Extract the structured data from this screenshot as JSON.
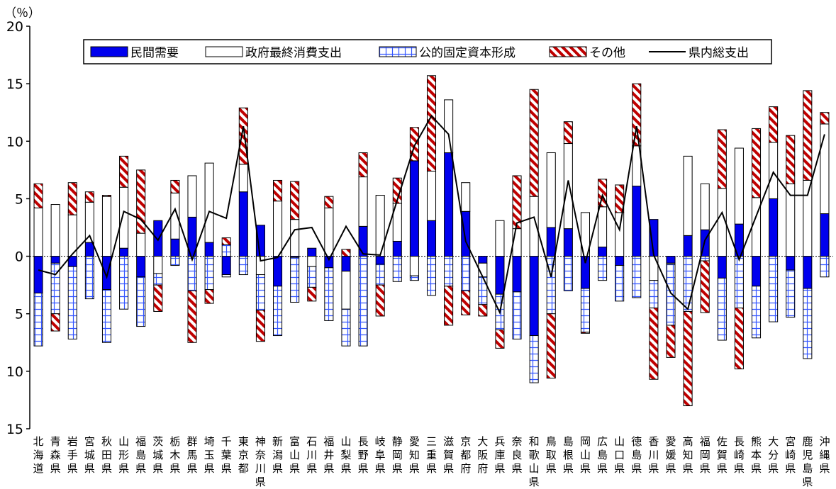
{
  "chart_data": {
    "type": "bar",
    "subtype": "stacked-bar-with-line",
    "unit_label": "（％）",
    "ylim": [
      -15,
      20
    ],
    "y_ticks": [
      20,
      15,
      10,
      5,
      0,
      -5,
      -10,
      -15
    ],
    "y_tick_labels": [
      "20",
      "15",
      "10",
      "5",
      "0",
      "5",
      "10",
      "15"
    ],
    "grid": false,
    "legend_position": "top",
    "categories": [
      "北海道",
      "青森県",
      "岩手県",
      "宮城県",
      "秋田県",
      "山形県",
      "福島県",
      "茨城県",
      "栃木県",
      "群馬県",
      "埼玉県",
      "千葉県",
      "東京都",
      "神奈川県",
      "新潟県",
      "富山県",
      "石川県",
      "福井県",
      "山梨県",
      "長野県",
      "岐阜県",
      "静岡県",
      "愛知県",
      "三重県",
      "滋賀県",
      "京都府",
      "大阪府",
      "兵庫県",
      "奈良県",
      "和歌山県",
      "鳥取県",
      "島根県",
      "岡山県",
      "広島県",
      "山口県",
      "徳島県",
      "香川県",
      "愛媛県",
      "高知県",
      "福岡県",
      "佐賀県",
      "長崎県",
      "熊本県",
      "大分県",
      "宮崎県",
      "鹿児島県",
      "沖縄県"
    ],
    "series": [
      {
        "name": "民間需要",
        "kind": "bar",
        "color": "#0000ee",
        "values": [
          -3.2,
          -0.6,
          -0.9,
          1.2,
          -2.9,
          0.7,
          -1.8,
          3.1,
          1.5,
          3.4,
          1.2,
          -1.6,
          5.6,
          2.7,
          -2.6,
          -0.1,
          0.7,
          -1.0,
          -1.3,
          2.6,
          -0.7,
          1.3,
          8.3,
          3.1,
          9.0,
          3.9,
          -0.6,
          -3.3,
          -3.1,
          -6.9,
          2.5,
          2.4,
          -2.8,
          0.8,
          -0.8,
          6.1,
          3.2,
          -0.6,
          1.8,
          2.3,
          -1.9,
          2.8,
          -2.6,
          5.0,
          -1.2,
          -2.8,
          3.7
        ]
      },
      {
        "name": "政府最終消費支出",
        "kind": "bar",
        "color": "#ffffff",
        "values": [
          4.2,
          4.5,
          3.6,
          3.5,
          5.2,
          5.3,
          2.0,
          -1.5,
          4.0,
          3.6,
          6.9,
          -0.2,
          2.4,
          -1.6,
          4.8,
          3.2,
          -0.9,
          4.2,
          -3.3,
          4.3,
          5.3,
          3.3,
          -1.7,
          4.3,
          4.6,
          2.5,
          -1.2,
          3.1,
          2.4,
          5.2,
          6.5,
          7.4,
          3.8,
          3.5,
          3.8,
          3.5,
          -2.1,
          -0.1,
          6.9,
          4.0,
          5.9,
          6.6,
          5.1,
          4.9,
          6.3,
          6.6,
          7.8
        ]
      },
      {
        "name": "公的固定資本形成",
        "kind": "bar",
        "color": "#ffffff",
        "pattern": "blue-grid",
        "values": [
          -4.6,
          -4.4,
          -6.3,
          -3.7,
          -4.6,
          -4.6,
          -4.3,
          -1.0,
          -0.8,
          -3.0,
          -2.9,
          1.0,
          -1.6,
          -3.1,
          -4.3,
          -3.9,
          -1.8,
          -4.6,
          -3.2,
          -7.8,
          -1.8,
          -2.2,
          -0.4,
          -3.4,
          -2.6,
          -3.0,
          -2.4,
          -3.1,
          -4.1,
          -4.1,
          -5.0,
          -3.0,
          -3.8,
          -2.1,
          -3.1,
          -3.6,
          -2.4,
          -5.3,
          -4.8,
          -0.4,
          -5.4,
          -4.5,
          -4.5,
          -5.7,
          -4.1,
          -6.1,
          -1.8
        ]
      },
      {
        "name": "その他",
        "kind": "bar",
        "color": "#c00000",
        "pattern": "hatch",
        "values": [
          2.1,
          -1.5,
          2.8,
          0.9,
          0.1,
          2.7,
          5.5,
          -2.3,
          1.1,
          -4.5,
          -1.2,
          0.6,
          4.9,
          -2.7,
          1.8,
          3.3,
          -1.2,
          1.0,
          0.6,
          2.1,
          -2.7,
          2.2,
          2.9,
          8.3,
          -3.4,
          -2.1,
          -1.0,
          -1.6,
          4.6,
          9.3,
          -5.6,
          1.9,
          -0.1,
          2.4,
          2.4,
          5.4,
          -6.2,
          -2.8,
          -8.2,
          -4.5,
          5.1,
          -5.3,
          6.0,
          3.1,
          4.2,
          7.8,
          1.0
        ]
      },
      {
        "name": "県内総支出",
        "kind": "line",
        "color": "#000000",
        "values": [
          -1.2,
          -1.6,
          0.2,
          1.8,
          -1.8,
          3.9,
          3.2,
          1.4,
          4.1,
          -0.3,
          3.9,
          3.3,
          11.3,
          -0.4,
          -0.1,
          2.3,
          2.5,
          -0.3,
          2.6,
          0.2,
          0.1,
          4.9,
          9.6,
          12.2,
          10.6,
          1.3,
          -1.8,
          -4.9,
          2.9,
          3.4,
          -1.8,
          6.6,
          -0.6,
          5.3,
          2.3,
          11.3,
          0.1,
          -3.2,
          -4.6,
          1.4,
          3.8,
          -0.3,
          3.5,
          7.3,
          5.3,
          5.3,
          10.6
        ]
      }
    ]
  }
}
